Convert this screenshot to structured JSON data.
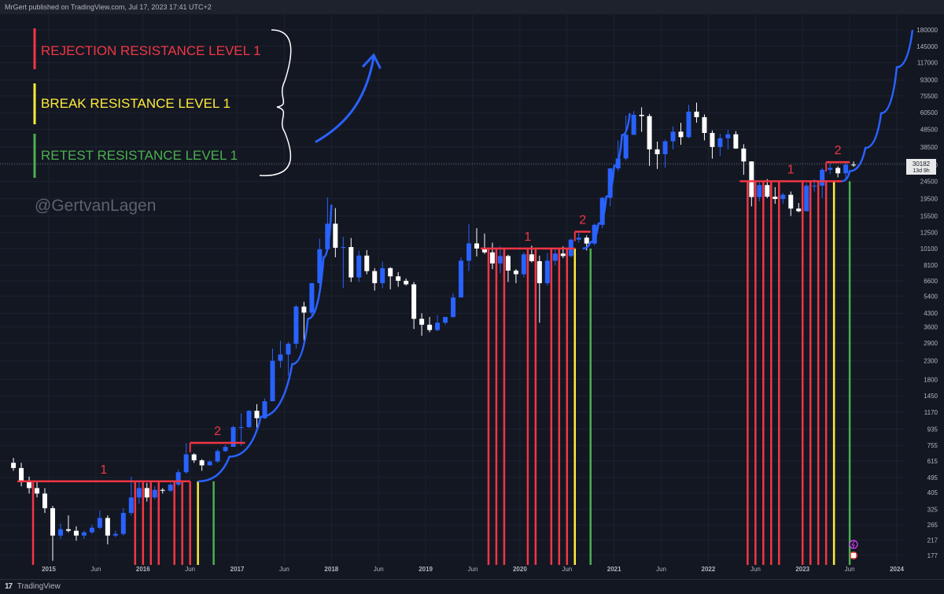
{
  "header": {
    "publisher": "MrGert published on TradingView.com, Jul 17, 2023 17:41 UTC+2"
  },
  "footer": {
    "brand": "TradingView"
  },
  "watermark": "@GertvanLagen",
  "legend": [
    {
      "label": "REJECTION RESISTANCE LEVEL 1",
      "color": "#f23645"
    },
    {
      "label": "BREAK RESISTANCE LEVEL 1",
      "color": "#ffeb3b"
    },
    {
      "label": "RETEST RESISTANCE LEVEL 1",
      "color": "#4caf50"
    }
  ],
  "price_label": {
    "price": "30182",
    "countdown": "13d 9h"
  },
  "chart_data": {
    "type": "candlestick",
    "scale": "log",
    "y_ticks": [
      "180000",
      "145000",
      "117000",
      "93000",
      "75500",
      "60500",
      "48500",
      "38500",
      "30500",
      "24500",
      "19500",
      "15500",
      "12500",
      "10100",
      "8100",
      "6600",
      "5400",
      "4300",
      "3600",
      "2900",
      "2300",
      "1800",
      "1450",
      "1170",
      "935",
      "755",
      "615",
      "495",
      "405",
      "325",
      "265",
      "217",
      "177"
    ],
    "x_ticks": [
      "2015",
      "Jun",
      "2016",
      "Jun",
      "2017",
      "Jun",
      "2018",
      "Jun",
      "2019",
      "Jun",
      "2020",
      "Jun",
      "2021",
      "Jun",
      "2022",
      "Jun",
      "2023",
      "Jun",
      "2024"
    ],
    "candles": [
      [
        "2014-08",
        600,
        560,
        640,
        540
      ],
      [
        "2014-09",
        560,
        470,
        600,
        440
      ],
      [
        "2014-10",
        470,
        430,
        500,
        400
      ],
      [
        "2014-11",
        430,
        400,
        470,
        380
      ],
      [
        "2014-12",
        400,
        330,
        430,
        310
      ],
      [
        "2015-01",
        330,
        230,
        340,
        165
      ],
      [
        "2015-02",
        230,
        250,
        270,
        220
      ],
      [
        "2015-03",
        250,
        245,
        300,
        240
      ],
      [
        "2015-04",
        245,
        230,
        260,
        215
      ],
      [
        "2015-05",
        230,
        240,
        245,
        220
      ],
      [
        "2015-06",
        240,
        255,
        265,
        235
      ],
      [
        "2015-07",
        255,
        290,
        320,
        250
      ],
      [
        "2015-08",
        290,
        230,
        300,
        205
      ],
      [
        "2015-09",
        230,
        235,
        245,
        225
      ],
      [
        "2015-10",
        235,
        310,
        330,
        230
      ],
      [
        "2015-11",
        310,
        380,
        500,
        300
      ],
      [
        "2015-12",
        380,
        430,
        470,
        350
      ],
      [
        "2016-01",
        430,
        380,
        460,
        360
      ],
      [
        "2016-02",
        380,
        420,
        440,
        370
      ],
      [
        "2016-03",
        420,
        415,
        430,
        400
      ],
      [
        "2016-04",
        415,
        450,
        460,
        410
      ],
      [
        "2016-05",
        450,
        530,
        550,
        440
      ],
      [
        "2016-06",
        530,
        670,
        780,
        520
      ],
      [
        "2016-07",
        670,
        620,
        680,
        600
      ],
      [
        "2016-08",
        620,
        580,
        630,
        540
      ],
      [
        "2016-09",
        580,
        610,
        620,
        590
      ],
      [
        "2016-10",
        610,
        700,
        720,
        600
      ],
      [
        "2016-11",
        700,
        740,
        760,
        690
      ],
      [
        "2016-12",
        740,
        960,
        980,
        740
      ],
      [
        "2017-01",
        960,
        960,
        1150,
        750
      ],
      [
        "2017-02",
        960,
        1190,
        1200,
        950
      ],
      [
        "2017-03",
        1190,
        1080,
        1300,
        900
      ],
      [
        "2017-04",
        1080,
        1350,
        1400,
        1070
      ],
      [
        "2017-05",
        1350,
        2300,
        2700,
        1350
      ],
      [
        "2017-06",
        2300,
        2500,
        3000,
        2100
      ],
      [
        "2017-07",
        2500,
        2880,
        2950,
        1900
      ],
      [
        "2017-08",
        2880,
        4700,
        4800,
        2700
      ],
      [
        "2017-09",
        4700,
        4340,
        5000,
        3000
      ],
      [
        "2017-10",
        4340,
        6400,
        6400,
        4100
      ],
      [
        "2017-11",
        6400,
        10000,
        11500,
        5500
      ],
      [
        "2017-12",
        10000,
        14000,
        19800,
        10000
      ],
      [
        "2018-01",
        14000,
        10200,
        17200,
        9000
      ],
      [
        "2018-02",
        10200,
        10300,
        11800,
        6000
      ],
      [
        "2018-03",
        10300,
        6900,
        11600,
        6500
      ],
      [
        "2018-04",
        6900,
        9200,
        9800,
        6500
      ],
      [
        "2018-05",
        9200,
        7500,
        9900,
        7200
      ],
      [
        "2018-06",
        7500,
        6400,
        7800,
        5800
      ],
      [
        "2018-07",
        6400,
        7800,
        8500,
        6000
      ],
      [
        "2018-08",
        7800,
        7000,
        7900,
        5900
      ],
      [
        "2018-09",
        7000,
        6600,
        7400,
        6100
      ],
      [
        "2018-10",
        6600,
        6300,
        6800,
        6200
      ],
      [
        "2018-11",
        6300,
        4000,
        6500,
        3500
      ],
      [
        "2018-12",
        4000,
        3700,
        4300,
        3200
      ],
      [
        "2019-01",
        3700,
        3450,
        4100,
        3350
      ],
      [
        "2019-02",
        3450,
        3800,
        4200,
        3400
      ],
      [
        "2019-03",
        3800,
        4100,
        4100,
        3700
      ],
      [
        "2019-04",
        4100,
        5300,
        5600,
        4050
      ],
      [
        "2019-05",
        5300,
        8600,
        9000,
        5300
      ],
      [
        "2019-06",
        8600,
        10800,
        13900,
        7500
      ],
      [
        "2019-07",
        10800,
        10100,
        13200,
        9100
      ],
      [
        "2019-08",
        10100,
        9600,
        12300,
        9400
      ],
      [
        "2019-09",
        9600,
        8300,
        10900,
        7700
      ],
      [
        "2019-10",
        8300,
        9150,
        10400,
        7300
      ],
      [
        "2019-11",
        9150,
        7550,
        9300,
        6500
      ],
      [
        "2019-12",
        7550,
        7200,
        7700,
        6400
      ],
      [
        "2020-01",
        7200,
        9350,
        9600,
        6900
      ],
      [
        "2020-02",
        9350,
        8550,
        10500,
        8400
      ],
      [
        "2020-03",
        8550,
        6400,
        9200,
        3800
      ],
      [
        "2020-04",
        6400,
        8600,
        9500,
        6200
      ],
      [
        "2020-05",
        8600,
        9450,
        10000,
        8100
      ],
      [
        "2020-06",
        9450,
        9150,
        10400,
        8900
      ],
      [
        "2020-07",
        9150,
        11350,
        11500,
        9000
      ],
      [
        "2020-08",
        11350,
        11650,
        12400,
        10900
      ],
      [
        "2020-09",
        11650,
        10780,
        12000,
        9850
      ],
      [
        "2020-10",
        10780,
        13800,
        14000,
        10500
      ],
      [
        "2020-11",
        13800,
        19700,
        19900,
        13200
      ],
      [
        "2020-12",
        19700,
        29000,
        29300,
        17600
      ],
      [
        "2021-01",
        29000,
        33100,
        41900,
        28100
      ],
      [
        "2021-02",
        33100,
        45200,
        58300,
        32300
      ],
      [
        "2021-03",
        45200,
        58800,
        61800,
        45000
      ],
      [
        "2021-04",
        58800,
        57800,
        64900,
        47000
      ],
      [
        "2021-05",
        57800,
        37300,
        59500,
        30000
      ],
      [
        "2021-06",
        37300,
        35000,
        41300,
        28800
      ],
      [
        "2021-07",
        35000,
        41500,
        42400,
        29300
      ],
      [
        "2021-08",
        41500,
        47100,
        50500,
        37300
      ],
      [
        "2021-09",
        47100,
        43800,
        52900,
        39600
      ],
      [
        "2021-10",
        43800,
        61300,
        67000,
        43300
      ],
      [
        "2021-11",
        61300,
        57000,
        69000,
        53000
      ],
      [
        "2021-12",
        57000,
        46300,
        59100,
        42000
      ],
      [
        "2022-01",
        46300,
        38500,
        47900,
        33000
      ],
      [
        "2022-02",
        38500,
        43200,
        45800,
        34300
      ],
      [
        "2022-03",
        43200,
        45500,
        48200,
        37200
      ],
      [
        "2022-04",
        45500,
        37700,
        47400,
        37600
      ],
      [
        "2022-05",
        37700,
        31800,
        39900,
        26700
      ],
      [
        "2022-06",
        31800,
        19900,
        31900,
        17600
      ],
      [
        "2022-07",
        19900,
        23300,
        24600,
        18800
      ],
      [
        "2022-08",
        23300,
        20000,
        25200,
        19600
      ],
      [
        "2022-09",
        20000,
        19400,
        22700,
        18200
      ],
      [
        "2022-10",
        19400,
        20500,
        21000,
        18200
      ],
      [
        "2022-11",
        20500,
        17100,
        21400,
        15500
      ],
      [
        "2022-12",
        17100,
        16500,
        18400,
        16300
      ],
      [
        "2023-01",
        16500,
        23100,
        23900,
        16500
      ],
      [
        "2023-02",
        23100,
        23100,
        25200,
        21400
      ],
      [
        "2023-03",
        23100,
        28500,
        29200,
        19600
      ],
      [
        "2023-04",
        28500,
        29200,
        31000,
        26900
      ],
      [
        "2023-05",
        29200,
        27200,
        29800,
        25800
      ],
      [
        "2023-06",
        27200,
        30500,
        31400,
        24800
      ],
      [
        "2023-07",
        30500,
        30182,
        31800,
        29600
      ]
    ],
    "curves": [
      {
        "name": "curve1",
        "points": [
          [
            "2016-08",
            470
          ],
          [
            "2016-12",
            650
          ],
          [
            "2017-04",
            1100
          ],
          [
            "2017-08",
            2200
          ],
          [
            "2017-10",
            4000
          ],
          [
            "2017-12",
            9000
          ],
          [
            "2018-01",
            18000
          ]
        ]
      },
      {
        "name": "curve2",
        "points": [
          [
            "2020-09",
            10100
          ],
          [
            "2020-10",
            11000
          ],
          [
            "2020-11",
            14000
          ],
          [
            "2020-12",
            20000
          ],
          [
            "2021-01",
            30000
          ],
          [
            "2021-02",
            45000
          ],
          [
            "2021-03",
            60000
          ]
        ]
      },
      {
        "name": "curve3",
        "points": [
          [
            "2023-06",
            24500
          ],
          [
            "2023-07",
            28000
          ],
          [
            "2023-09",
            38000
          ],
          [
            "2023-11",
            60000
          ],
          [
            "2024-01",
            110000
          ],
          [
            "2024-03",
            180000
          ]
        ]
      }
    ],
    "resistance_lines": [
      {
        "label": "1",
        "price": 470,
        "from": "2014-09",
        "to": "2016-07"
      },
      {
        "label": "2",
        "price": 780,
        "from": "2016-07",
        "to": "2017-02"
      },
      {
        "label": "1",
        "price": 10100,
        "from": "2019-08",
        "to": "2020-08"
      },
      {
        "label": "2",
        "price": 12600,
        "from": "2020-08",
        "to": "2020-10"
      },
      {
        "label": "1",
        "price": 24500,
        "from": "2022-05",
        "to": "2023-06"
      },
      {
        "label": "2",
        "price": 31500,
        "from": "2023-04",
        "to": "2023-07"
      }
    ],
    "vertical_markers": [
      {
        "date": "2014-11",
        "type": "rejection"
      },
      {
        "date": "2015-12",
        "type": "rejection"
      },
      {
        "date": "2016-01",
        "type": "rejection"
      },
      {
        "date": "2016-02",
        "type": "rejection"
      },
      {
        "date": "2016-03",
        "type": "rejection"
      },
      {
        "date": "2016-05",
        "type": "rejection"
      },
      {
        "date": "2016-06",
        "type": "rejection"
      },
      {
        "date": "2016-07",
        "type": "rejection"
      },
      {
        "date": "2016-08",
        "type": "break"
      },
      {
        "date": "2016-10",
        "type": "retest"
      },
      {
        "date": "2019-09",
        "type": "rejection"
      },
      {
        "date": "2019-10",
        "type": "rejection"
      },
      {
        "date": "2019-11",
        "type": "rejection"
      },
      {
        "date": "2020-02",
        "type": "rejection"
      },
      {
        "date": "2020-03",
        "type": "rejection"
      },
      {
        "date": "2020-05",
        "type": "rejection"
      },
      {
        "date": "2020-06",
        "type": "rejection"
      },
      {
        "date": "2020-07",
        "type": "rejection"
      },
      {
        "date": "2020-08",
        "type": "break"
      },
      {
        "date": "2020-10",
        "type": "retest"
      },
      {
        "date": "2022-06",
        "type": "rejection"
      },
      {
        "date": "2022-07",
        "type": "rejection"
      },
      {
        "date": "2022-08",
        "type": "rejection"
      },
      {
        "date": "2022-09",
        "type": "rejection"
      },
      {
        "date": "2022-10",
        "type": "rejection"
      },
      {
        "date": "2023-01",
        "type": "rejection"
      },
      {
        "date": "2023-02",
        "type": "rejection"
      },
      {
        "date": "2023-03",
        "type": "rejection"
      },
      {
        "date": "2023-04",
        "type": "rejection"
      },
      {
        "date": "2023-05",
        "type": "break"
      },
      {
        "date": "2023-07",
        "type": "retest"
      }
    ]
  }
}
